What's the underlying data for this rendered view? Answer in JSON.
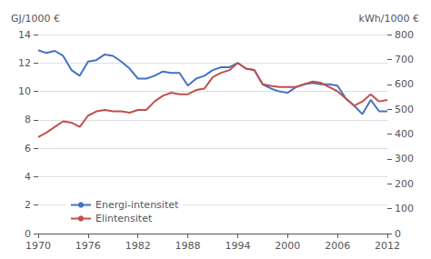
{
  "chart_data": {
    "type": "line",
    "ylabel": "GJ/1000 €",
    "y2label": "kWh/1000 €",
    "x": [
      1970,
      1971,
      1972,
      1973,
      1974,
      1975,
      1976,
      1977,
      1978,
      1979,
      1980,
      1981,
      1982,
      1983,
      1984,
      1985,
      1986,
      1987,
      1988,
      1989,
      1990,
      1991,
      1992,
      1993,
      1994,
      1995,
      1996,
      1997,
      1998,
      1999,
      2000,
      2001,
      2002,
      2003,
      2004,
      2005,
      2006,
      2007,
      2008,
      2009,
      2010,
      2011,
      2012
    ],
    "series": [
      {
        "name": "Energi-intensitet",
        "color": "#4472C4",
        "values": [
          12.9,
          12.7,
          12.85,
          12.5,
          11.5,
          11.1,
          12.1,
          12.2,
          12.6,
          12.5,
          12.1,
          11.6,
          10.9,
          10.9,
          11.1,
          11.4,
          11.3,
          11.3,
          10.4,
          10.9,
          11.1,
          11.5,
          11.7,
          11.7,
          12.0,
          11.6,
          11.5,
          10.5,
          10.2,
          10.0,
          9.9,
          10.3,
          10.5,
          10.6,
          10.5,
          10.5,
          10.4,
          9.5,
          9.0,
          8.4,
          9.4,
          8.6,
          8.6
        ]
      },
      {
        "name": "Elintensitet",
        "color": "#C0504D",
        "axis": "y2",
        "values": [
          388,
          406,
          429,
          451,
          446,
          429,
          474,
          491,
          497,
          491,
          491,
          486,
          497,
          497,
          531,
          554,
          566,
          560,
          560,
          577,
          583,
          629,
          646,
          657,
          686,
          663,
          657,
          600,
          594,
          589,
          589,
          589,
          600,
          611,
          606,
          589,
          572,
          543,
          514,
          531,
          560,
          531,
          537
        ]
      }
    ],
    "xlim": [
      1970,
      2012
    ],
    "xticks": [
      1970,
      1976,
      1982,
      1988,
      1994,
      2000,
      2006,
      2012
    ],
    "ylim": [
      0,
      14
    ],
    "yticks": [
      0,
      2,
      4,
      6,
      8,
      10,
      12,
      14
    ],
    "y2lim": [
      0,
      800
    ],
    "y2ticks": [
      0,
      100,
      200,
      300,
      400,
      500,
      600,
      700,
      800
    ],
    "grid": true,
    "legend": "lower left"
  }
}
